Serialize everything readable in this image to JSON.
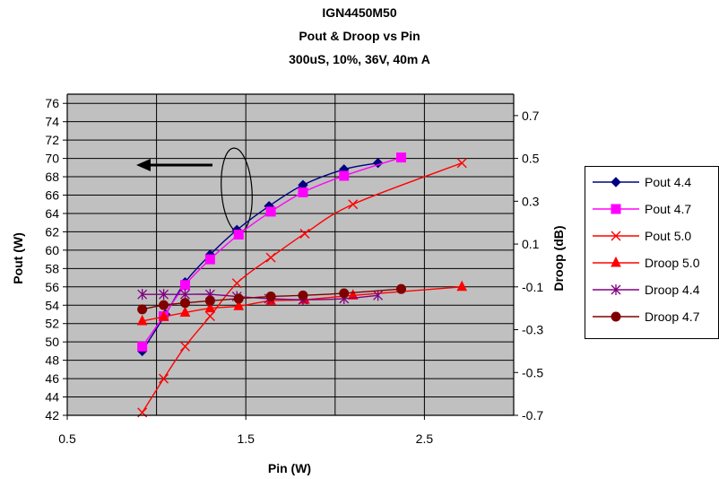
{
  "chart_data": {
    "type": "line",
    "title_lines": [
      "IGN4450M50",
      "Pout & Droop vs Pin",
      "300uS, 10%, 36V, 40m A"
    ],
    "xlabel": "Pin (W)",
    "ylabel_left": "Pout (W)",
    "ylabel_right": "Droop (dB)",
    "xlim": [
      0.5,
      3.0
    ],
    "ylim_left": [
      42,
      77
    ],
    "ylim_right": [
      -0.7,
      0.8
    ],
    "x_ticks": [
      0.5,
      1.5,
      2.5
    ],
    "x_tick_labels": [
      "0.5",
      "1.5",
      "2.5"
    ],
    "y_left_ticks": [
      42,
      44,
      46,
      48,
      50,
      52,
      54,
      56,
      58,
      60,
      62,
      64,
      66,
      68,
      70,
      72,
      74,
      76
    ],
    "y_left_tick_labels": [
      "42",
      "44",
      "46",
      "48",
      "50",
      "52",
      "54",
      "56",
      "58",
      "60",
      "62",
      "64",
      "66",
      "68",
      "70",
      "72",
      "74",
      "76"
    ],
    "y_right_ticks": [
      -0.7,
      -0.5,
      -0.3,
      -0.1,
      0.1,
      0.3,
      0.5,
      0.7
    ],
    "y_right_tick_labels": [
      "-0.7",
      "-0.5",
      "-0.3",
      "-0.1",
      "0.1",
      "0.3",
      "0.5",
      "0.7"
    ],
    "grid": true,
    "plot_background": "#c0c0c0",
    "legend_position": "right",
    "series": [
      {
        "name": "Pout 4.4",
        "axis": "left",
        "color": "#000080",
        "marker": "diamond",
        "x": [
          0.92,
          1.05,
          1.16,
          1.3,
          1.45,
          1.63,
          1.82,
          2.05,
          2.24
        ],
        "y": [
          49.0,
          53.0,
          56.5,
          59.5,
          62.2,
          64.8,
          67.1,
          68.8,
          69.5
        ]
      },
      {
        "name": "Pout 4.7",
        "axis": "left",
        "color": "#ff00ff",
        "marker": "square",
        "x": [
          0.92,
          1.04,
          1.16,
          1.3,
          1.46,
          1.64,
          1.82,
          2.05,
          2.37
        ],
        "y": [
          49.5,
          52.8,
          56.2,
          59.0,
          61.7,
          64.2,
          66.3,
          68.1,
          70.1
        ]
      },
      {
        "name": "Pout 5.0",
        "axis": "left",
        "color": "#ff0000",
        "marker": "x",
        "x": [
          0.92,
          1.04,
          1.16,
          1.3,
          1.45,
          1.64,
          1.83,
          2.1,
          2.71
        ],
        "y": [
          42.3,
          46.0,
          49.5,
          52.8,
          56.4,
          59.2,
          61.8,
          65.0,
          69.5
        ]
      },
      {
        "name": "Droop 5.0",
        "axis": "right",
        "color": "#ff0000",
        "marker": "triangle",
        "x": [
          0.92,
          1.04,
          1.16,
          1.3,
          1.46,
          1.64,
          1.83,
          2.1,
          2.71
        ],
        "y": [
          -0.26,
          -0.24,
          -0.22,
          -0.2,
          -0.19,
          -0.165,
          -0.16,
          -0.14,
          -0.1
        ]
      },
      {
        "name": "Droop 4.4",
        "axis": "right",
        "color": "#800080",
        "marker": "star",
        "x": [
          0.92,
          1.04,
          1.16,
          1.3,
          1.45,
          1.63,
          1.82,
          2.05,
          2.24
        ],
        "y": [
          -0.135,
          -0.135,
          -0.135,
          -0.135,
          -0.145,
          -0.155,
          -0.16,
          -0.155,
          -0.14
        ]
      },
      {
        "name": "Droop 4.7",
        "axis": "right",
        "color": "#800000",
        "marker": "circle",
        "x": [
          0.92,
          1.04,
          1.16,
          1.3,
          1.46,
          1.64,
          1.82,
          2.05,
          2.37
        ],
        "y": [
          -0.205,
          -0.185,
          -0.175,
          -0.165,
          -0.155,
          -0.145,
          -0.14,
          -0.13,
          -0.11
        ]
      }
    ]
  }
}
